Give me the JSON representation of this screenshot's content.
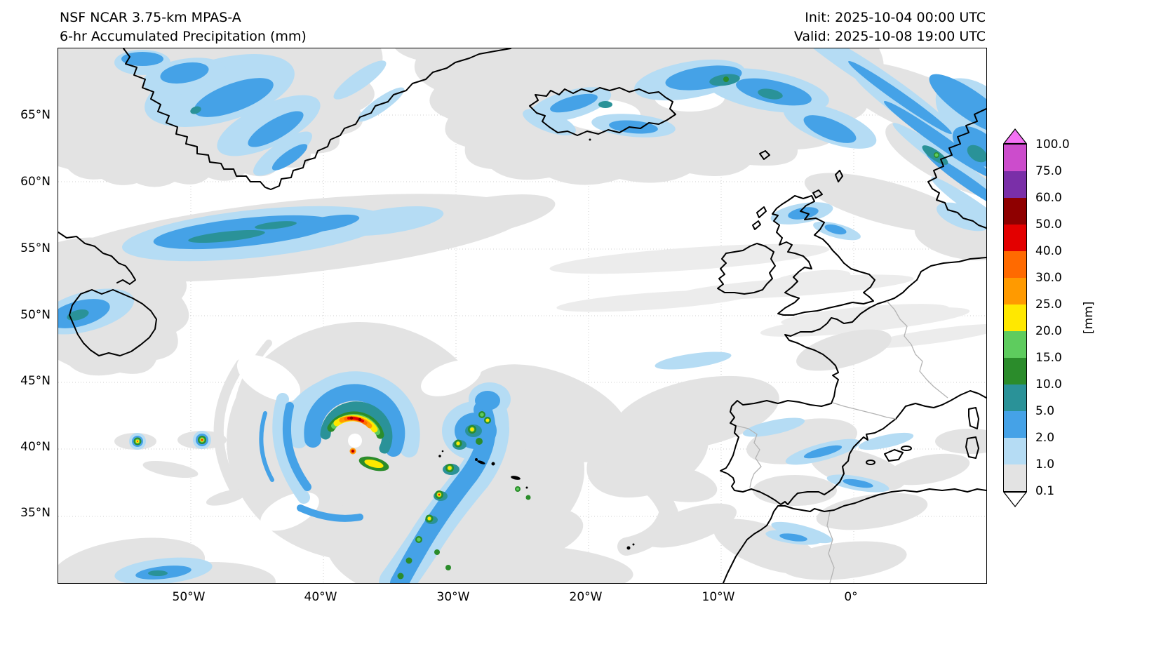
{
  "header": {
    "title_line1": "NSF NCAR 3.75-km MPAS-A",
    "title_line2": "6-hr Accumulated Precipitation (mm)",
    "init_label": "Init: 2025-10-04 00:00 UTC",
    "valid_label": "Valid: 2025-10-08 19:00 UTC"
  },
  "axes": {
    "lat_ticks": [
      "65°N",
      "60°N",
      "55°N",
      "50°N",
      "45°N",
      "40°N",
      "35°N"
    ],
    "lon_ticks": [
      "50°W",
      "40°W",
      "30°W",
      "20°W",
      "10°W",
      "0°"
    ]
  },
  "colorbar": {
    "unit_label": "[mm]",
    "tick_labels_top_to_bottom": [
      "100.0",
      "75.0",
      "60.0",
      "50.0",
      "40.0",
      "30.0",
      "25.0",
      "20.0",
      "15.0",
      "10.0",
      "5.0",
      "2.0",
      "1.0",
      "0.1"
    ],
    "segment_colors_top_to_bottom": [
      "#cc4ccc",
      "#7a2fa8",
      "#8f0000",
      "#e30000",
      "#ff6a00",
      "#ff9a00",
      "#ffe800",
      "#5ecc5e",
      "#2b8c2b",
      "#2a9298",
      "#45a2e7",
      "#b5dcf4",
      "#e3e3e3"
    ],
    "over_arrow_color": "#f472f4",
    "under_arrow_color": "#ffffff"
  },
  "chart_data": {
    "type": "heatmap",
    "title": "6-hr Accumulated Precipitation (mm)",
    "model": "NSF NCAR 3.75-km MPAS-A",
    "init": "2025-10-04 00:00 UTC",
    "valid": "2025-10-08 19:00 UTC",
    "x_ticks": [
      "50°W",
      "40°W",
      "30°W",
      "20°W",
      "10°W",
      "0°"
    ],
    "y_ticks": [
      "65°N",
      "60°N",
      "55°N",
      "50°N",
      "45°N",
      "40°N",
      "35°N"
    ],
    "lon_range_deg": [
      -60,
      10
    ],
    "lat_range_deg": [
      30,
      70
    ],
    "grid": "dotted graticule every 5° latitude / 10° longitude",
    "colorbar_unit": "[mm]",
    "colorbar_levels_mm": [
      0.1,
      1.0,
      2.0,
      5.0,
      10.0,
      15.0,
      20.0,
      25.0,
      30.0,
      40.0,
      50.0,
      60.0,
      75.0,
      100.0
    ],
    "colorbar_colors_low_to_high": [
      "#e3e3e3",
      "#b5dcf4",
      "#45a2e7",
      "#2a9298",
      "#2b8c2b",
      "#5ecc5e",
      "#ffe800",
      "#ff9a00",
      "#ff6a00",
      "#e30000",
      "#8f0000",
      "#7a2fa8",
      "#cc4ccc"
    ],
    "under_color": "#ffffff",
    "over_color": "#f472f4",
    "features": [
      {
        "feature": "cutoff cyclone with spiral rainbands and dry eye-like center",
        "center_lon": -37.5,
        "center_lat": 40.5,
        "core_max_mm": "40-60"
      },
      {
        "feature": "trailing convective band with embedded 15-40 mm cells",
        "from_lon_lat": [
          -33,
          39.5
        ],
        "to_lon_lat": [
          -36,
          30.5
        ]
      },
      {
        "feature": "isolated convective cells with 20-50 mm cores",
        "locations_lon_lat": [
          [
            -54,
            40.5
          ],
          [
            -49,
            40.6
          ]
        ]
      },
      {
        "feature": "stratiform band 2-10 mm",
        "lat_range": [
          54,
          58
        ],
        "lon_range": [
          -57,
          -35
        ]
      },
      {
        "feature": "precipitation 2-10 mm over southeast Greenland"
      },
      {
        "feature": "showers 2-15 mm north and east of Iceland"
      },
      {
        "feature": "banded orographic precipitation 2-15 mm along Norway coast (northeast corner)"
      },
      {
        "feature": "light showers 1-5 mm over Scotland, Iberia and Bay of Biscay"
      },
      {
        "feature": "broad 0.1-1 mm light-precipitation shields across the North Atlantic"
      }
    ]
  }
}
